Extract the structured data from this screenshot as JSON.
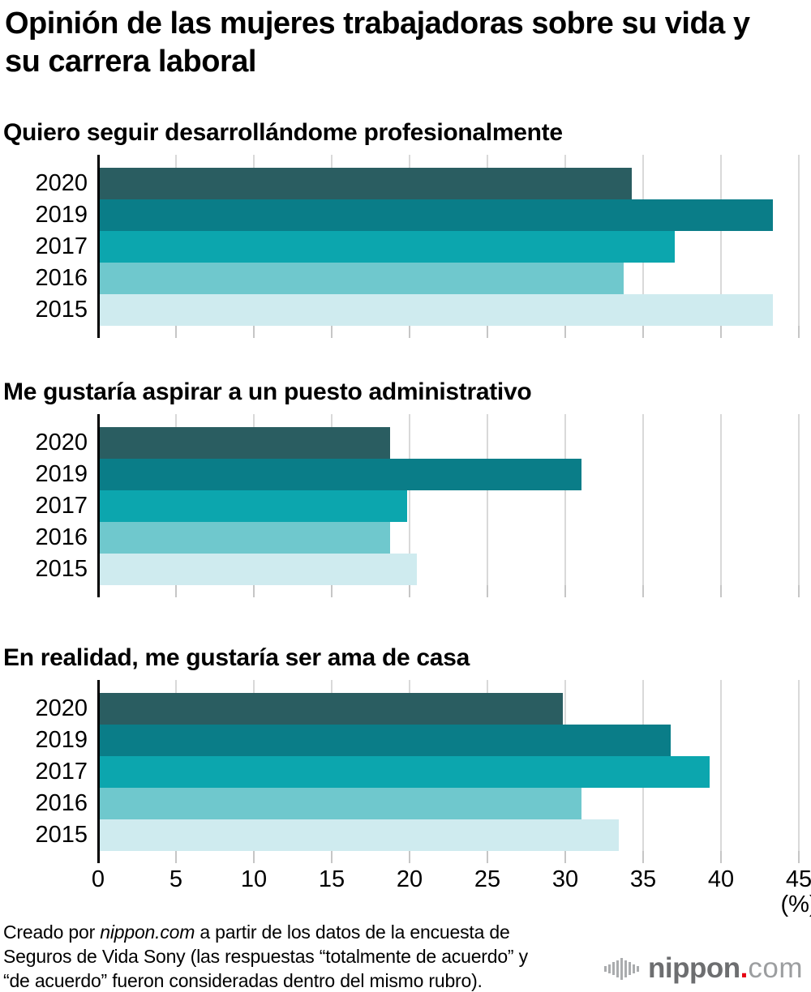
{
  "title": {
    "line1": "Opinión de las mujeres trabajadoras sobre su vida y",
    "line2": "su carrera laboral"
  },
  "axis": {
    "ticks": [
      0,
      5,
      10,
      15,
      20,
      25,
      30,
      35,
      40,
      45
    ],
    "max": 45,
    "unit_label": "(%)"
  },
  "colors": {
    "bar_colors": [
      "#2a5d61",
      "#0a7d88",
      "#0ca6ae",
      "#6fc8cd",
      "#cfebef"
    ],
    "gridline": "#d9d9d9",
    "tick": "#c6c6c6",
    "axis": "#000000",
    "logo_name": "#6d6e70",
    "logo_dot": "#e60012",
    "logo_tld": "#9c9ea0"
  },
  "chart_data": [
    {
      "type": "bar",
      "orientation": "horizontal",
      "title": "Quiero seguir desarrollándome profesionalmente",
      "categories": [
        "2020",
        "2019",
        "2017",
        "2016",
        "2015"
      ],
      "values": [
        34.2,
        43.3,
        37.0,
        33.7,
        43.3
      ],
      "xlim": [
        0,
        45
      ],
      "xlabel": "(%)",
      "grid": true,
      "legend": "none"
    },
    {
      "type": "bar",
      "orientation": "horizontal",
      "title": "Me gustaría aspirar a un puesto administrativo",
      "categories": [
        "2020",
        "2019",
        "2017",
        "2016",
        "2015"
      ],
      "values": [
        18.7,
        31.0,
        19.8,
        18.7,
        20.4
      ],
      "xlim": [
        0,
        45
      ],
      "xlabel": "(%)",
      "grid": true,
      "legend": "none"
    },
    {
      "type": "bar",
      "orientation": "horizontal",
      "title": "En realidad, me gustaría ser ama de casa",
      "categories": [
        "2020",
        "2019",
        "2017",
        "2016",
        "2015"
      ],
      "values": [
        29.8,
        36.7,
        39.2,
        31.0,
        33.4
      ],
      "xlim": [
        0,
        45
      ],
      "xlabel": "(%)",
      "grid": true,
      "legend": "none"
    }
  ],
  "footer": {
    "credit_prefix": "Creado por ",
    "credit_source": "nippon.com",
    "line1_rest": " a partir de los datos de la encuesta de",
    "line2": "Seguros de Vida Sony (las respuestas “totalmente de acuerdo” y",
    "line3": "“de acuerdo” fueron consideradas dentro del mismo rubro)."
  },
  "logo": {
    "name": "nippon",
    "dot": ".",
    "tld": "com"
  }
}
